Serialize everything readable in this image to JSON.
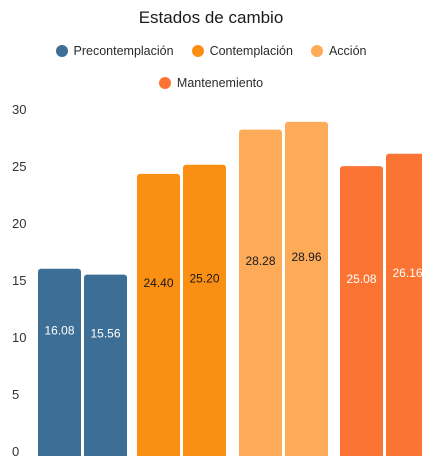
{
  "chart_data": {
    "type": "bar",
    "title": "Estados de cambio",
    "xlabel": "",
    "ylabel": "",
    "ylim": [
      0,
      30
    ],
    "yticks": [
      0,
      5,
      10,
      15,
      20,
      25,
      30
    ],
    "grid": false,
    "legend_position": "top",
    "groups": [
      {
        "name": "Precontemplación",
        "color": "#3d6f96",
        "values": [
          16.08,
          15.56
        ],
        "label_color": "#ffffff"
      },
      {
        "name": "Contemplación",
        "color": "#fb8f14",
        "values": [
          24.4,
          25.2
        ],
        "label_color": "#1a1a1a"
      },
      {
        "name": "Acción",
        "color": "#fdab59",
        "values": [
          28.28,
          28.96
        ],
        "label_color": "#1a1a1a"
      },
      {
        "name": "Mantenemiento",
        "color": "#fb7434",
        "values": [
          25.08,
          26.16
        ],
        "label_color": "#ffffff"
      }
    ]
  }
}
